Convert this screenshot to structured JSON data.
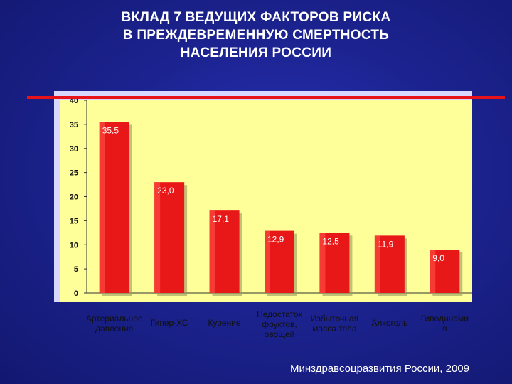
{
  "slide": {
    "title_lines": [
      "ВКЛАД 7 ВЕДУЩИХ ФАКТОРОВ РИСКА",
      "В ПРЕЖДЕВРЕМЕННУЮ СМЕРТНОСТЬ",
      "НАСЕЛЕНИЯ РОССИИ"
    ],
    "source": "Минздравсоцразвития России, 2009",
    "colors": {
      "background": "#1c2390",
      "plot_area": "#ffff99",
      "bar": "#e81818",
      "accent_line": "#e8121b"
    }
  },
  "chart_data": {
    "type": "bar",
    "categories": [
      [
        "Артериальное",
        "давление"
      ],
      [
        "Гипер-ХС"
      ],
      [
        "Курение"
      ],
      [
        "Недостаток",
        "фруктов,",
        "овощей"
      ],
      [
        "Избыточная",
        "масса тела"
      ],
      [
        "Алкоголь"
      ],
      [
        "Гиподинами",
        "я"
      ]
    ],
    "values": [
      35.5,
      23.0,
      17.1,
      12.9,
      12.5,
      11.9,
      9.0
    ],
    "value_labels": [
      "35,5",
      "23,0",
      "17,1",
      "12,9",
      "12,5",
      "11,9",
      "9,0"
    ],
    "yticks": [
      "0",
      "5",
      "10",
      "15",
      "20",
      "25",
      "30",
      "35",
      "40"
    ],
    "ylim": [
      0,
      40
    ],
    "grid": false,
    "legend": "none"
  }
}
